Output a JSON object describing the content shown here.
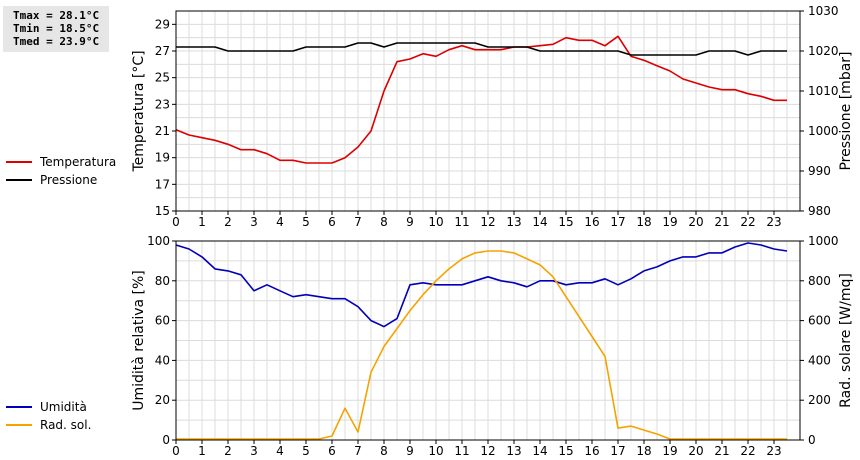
{
  "stats": {
    "tmax": "Tmax = 28.1°C",
    "tmin": "Tmin = 18.5°C",
    "tmed": "Tmed = 23.9°C"
  },
  "legend_top": [
    {
      "label": "Temperatura",
      "color": "#dd0000"
    },
    {
      "label": "Pressione",
      "color": "#000000"
    }
  ],
  "legend_bottom": [
    {
      "label": "Umidità",
      "color": "#0000bb"
    },
    {
      "label": "Rad. sol.",
      "color": "#f5a300"
    }
  ],
  "chart_data": [
    {
      "type": "line",
      "xlim": [
        0,
        24
      ],
      "xticks": [
        0,
        1,
        2,
        3,
        4,
        5,
        6,
        7,
        8,
        9,
        10,
        11,
        12,
        13,
        14,
        15,
        16,
        17,
        18,
        19,
        20,
        21,
        22,
        23
      ],
      "ylabel": "Temperatura [°C]",
      "ylim": [
        15,
        30
      ],
      "yticks": [
        15,
        17,
        19,
        21,
        23,
        25,
        27,
        29
      ],
      "y2label": "Pressione [mbar]",
      "y2lim": [
        980,
        1030
      ],
      "y2ticks": [
        980,
        990,
        1000,
        1010,
        1020,
        1030
      ],
      "grid": true,
      "series": [
        {
          "name": "Temperatura",
          "axis": "left",
          "color": "#dd0000",
          "x": [
            0,
            0.5,
            1,
            1.5,
            2,
            2.5,
            3,
            3.5,
            4,
            4.5,
            5,
            5.5,
            6,
            6.5,
            7,
            7.5,
            8,
            8.5,
            9,
            9.5,
            10,
            10.5,
            11,
            11.5,
            12,
            12.5,
            13,
            13.5,
            14,
            14.5,
            15,
            15.5,
            16,
            16.5,
            17,
            17.5,
            18,
            18.5,
            19,
            19.5,
            20,
            20.5,
            21,
            21.5,
            22,
            22.5,
            23,
            23.5
          ],
          "values": [
            21.1,
            20.7,
            20.5,
            20.3,
            20.0,
            19.6,
            19.6,
            19.3,
            18.8,
            18.8,
            18.6,
            18.6,
            18.6,
            19.0,
            19.8,
            21.0,
            24.0,
            26.2,
            26.4,
            26.8,
            26.6,
            27.1,
            27.4,
            27.1,
            27.1,
            27.1,
            27.3,
            27.3,
            27.4,
            27.5,
            28.0,
            27.8,
            27.8,
            27.4,
            28.1,
            26.6,
            26.3,
            25.9,
            25.5,
            24.9,
            24.6,
            24.3,
            24.1,
            24.1,
            23.8,
            23.6,
            23.3,
            23.3
          ]
        },
        {
          "name": "Pressione",
          "axis": "right",
          "color": "#000000",
          "x": [
            0,
            0.5,
            1,
            1.5,
            2,
            2.5,
            3,
            3.5,
            4,
            4.5,
            5,
            5.5,
            6,
            6.5,
            7,
            7.5,
            8,
            8.5,
            9,
            9.5,
            10,
            10.5,
            11,
            11.5,
            12,
            12.5,
            13,
            13.5,
            14,
            14.5,
            15,
            15.5,
            16,
            16.5,
            17,
            17.5,
            18,
            18.5,
            19,
            19.5,
            20,
            20.5,
            21,
            21.5,
            22,
            22.5,
            23,
            23.5
          ],
          "values": [
            1021,
            1021,
            1021,
            1021,
            1020,
            1020,
            1020,
            1020,
            1020,
            1020,
            1021,
            1021,
            1021,
            1021,
            1022,
            1022,
            1021,
            1022,
            1022,
            1022,
            1022,
            1022,
            1022,
            1022,
            1021,
            1021,
            1021,
            1021,
            1020,
            1020,
            1020,
            1020,
            1020,
            1020,
            1020,
            1019,
            1019,
            1019,
            1019,
            1019,
            1019,
            1020,
            1020,
            1020,
            1019,
            1020,
            1020,
            1020
          ]
        }
      ]
    },
    {
      "type": "line",
      "xlim": [
        0,
        24
      ],
      "xticks": [
        0,
        1,
        2,
        3,
        4,
        5,
        6,
        7,
        8,
        9,
        10,
        11,
        12,
        13,
        14,
        15,
        16,
        17,
        18,
        19,
        20,
        21,
        22,
        23
      ],
      "ylabel": "Umidità relativa [%]",
      "ylim": [
        0,
        100
      ],
      "yticks": [
        0,
        20,
        40,
        60,
        80,
        100
      ],
      "y2label": "Rad. solare [W/mq]",
      "y2lim": [
        0,
        1000
      ],
      "y2ticks": [
        0,
        200,
        400,
        600,
        800,
        1000
      ],
      "grid": true,
      "series": [
        {
          "name": "Umidità",
          "axis": "left",
          "color": "#0000bb",
          "x": [
            0,
            0.5,
            1,
            1.5,
            2,
            2.5,
            3,
            3.5,
            4,
            4.5,
            5,
            5.5,
            6,
            6.5,
            7,
            7.5,
            8,
            8.5,
            9,
            9.5,
            10,
            10.5,
            11,
            11.5,
            12,
            12.5,
            13,
            13.5,
            14,
            14.5,
            15,
            15.5,
            16,
            16.5,
            17,
            17.5,
            18,
            18.5,
            19,
            19.5,
            20,
            20.5,
            21,
            21.5,
            22,
            22.5,
            23,
            23.5
          ],
          "values": [
            98,
            96,
            92,
            86,
            85,
            83,
            75,
            78,
            75,
            72,
            73,
            72,
            71,
            71,
            67,
            60,
            57,
            61,
            78,
            79,
            78,
            78,
            78,
            80,
            82,
            80,
            79,
            77,
            80,
            80,
            78,
            79,
            79,
            81,
            78,
            81,
            85,
            87,
            90,
            92,
            92,
            94,
            94,
            97,
            99,
            98,
            96,
            95
          ]
        },
        {
          "name": "Rad. sol.",
          "axis": "right",
          "color": "#f5a300",
          "x": [
            0,
            0.5,
            1,
            1.5,
            2,
            2.5,
            3,
            3.5,
            4,
            4.5,
            5,
            5.5,
            6,
            6.5,
            7,
            7.5,
            8,
            8.5,
            9,
            9.5,
            10,
            10.5,
            11,
            11.5,
            12,
            12.5,
            13,
            13.5,
            14,
            14.5,
            15,
            15.5,
            16,
            16.5,
            17,
            17.5,
            18,
            18.5,
            19,
            19.5,
            20,
            20.5,
            21,
            21.5,
            22,
            22.5,
            23,
            23.5
          ],
          "values": [
            5,
            5,
            5,
            5,
            5,
            5,
            5,
            5,
            5,
            5,
            5,
            5,
            20,
            160,
            40,
            340,
            470,
            560,
            650,
            730,
            800,
            860,
            910,
            940,
            950,
            950,
            940,
            910,
            880,
            820,
            720,
            620,
            520,
            420,
            60,
            70,
            50,
            30,
            5,
            5,
            5,
            5,
            5,
            5,
            5,
            5,
            5,
            5
          ]
        }
      ]
    }
  ]
}
